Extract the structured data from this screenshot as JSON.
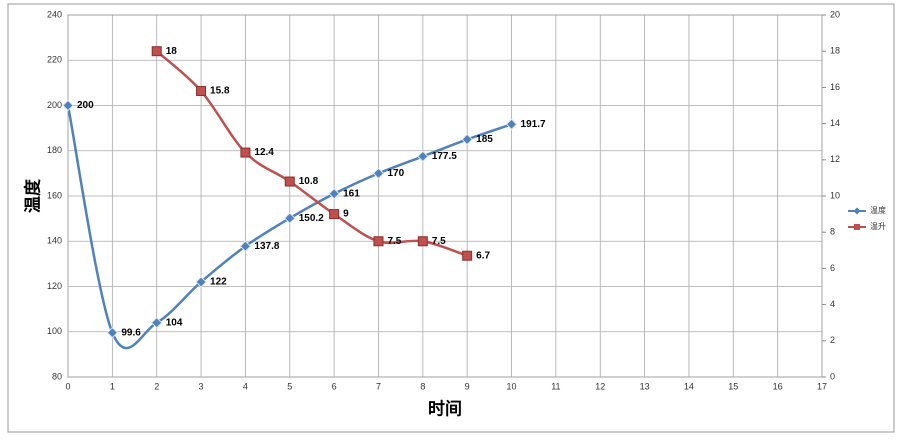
{
  "chart_data": {
    "type": "line",
    "x_label": "时间",
    "y_label": "温度",
    "xlim": [
      0,
      17
    ],
    "xticks": [
      0,
      1,
      2,
      3,
      4,
      5,
      6,
      7,
      8,
      9,
      10,
      11,
      12,
      13,
      14,
      15,
      16,
      17
    ],
    "ylim": [
      80,
      240
    ],
    "yticks": [
      80,
      100,
      120,
      140,
      160,
      180,
      200,
      220,
      240
    ],
    "y2lim": [
      0,
      20
    ],
    "y2ticks": [
      0,
      2,
      4,
      6,
      8,
      10,
      12,
      14,
      16,
      18,
      20
    ],
    "grid": true,
    "legend": "right",
    "smooth": true,
    "series": [
      {
        "name": "温度",
        "color": "#4f81bd",
        "marker": "diamond",
        "axis": "y",
        "x": [
          0,
          1,
          2,
          3,
          4,
          5,
          6,
          7,
          8,
          9,
          10
        ],
        "values": [
          200,
          99.6,
          104,
          122,
          137.8,
          150.2,
          161,
          170,
          177.5,
          185,
          191.7
        ]
      },
      {
        "name": "温升",
        "color": "#c0504d",
        "marker": "square",
        "axis": "y2",
        "x": [
          2,
          3,
          4,
          5,
          6,
          7,
          8,
          9
        ],
        "values": [
          18,
          15.8,
          12.4,
          10.8,
          9,
          7.5,
          7.5,
          6.7
        ]
      }
    ]
  }
}
